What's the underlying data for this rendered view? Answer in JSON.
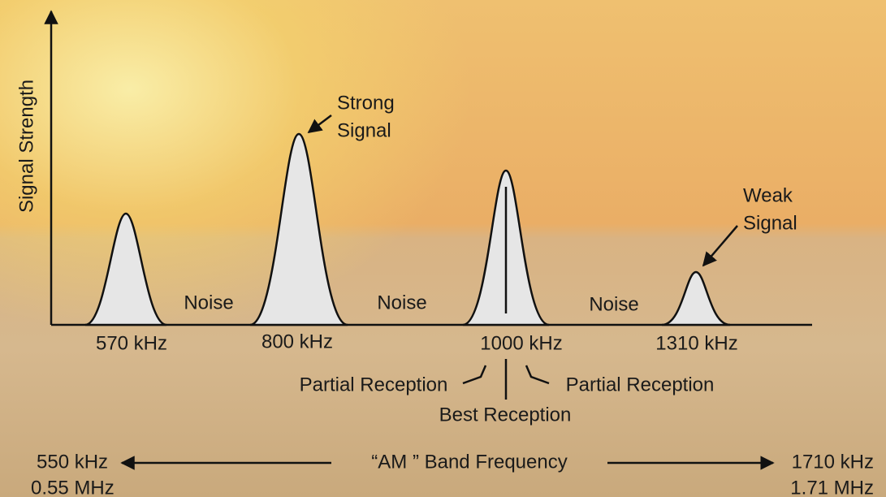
{
  "axis": {
    "y_label": "Signal Strength"
  },
  "peaks": [
    "570 kHz",
    "800 kHz",
    "1000 kHz",
    "1310 kHz"
  ],
  "strong_signal": [
    "Strong",
    "Signal"
  ],
  "weak_signal": [
    "Weak",
    "Signal"
  ],
  "noise": [
    "Noise",
    "Noise",
    "Noise"
  ],
  "reception": {
    "partial_left": "Partial Reception",
    "best": "Best Reception",
    "partial_right": "Partial Reception"
  },
  "band": {
    "start": [
      "550 kHz",
      "0.55 MHz"
    ],
    "title": "“AM ” Band Frequency",
    "end": [
      "1710 kHz",
      "1.71 MHz"
    ]
  }
}
